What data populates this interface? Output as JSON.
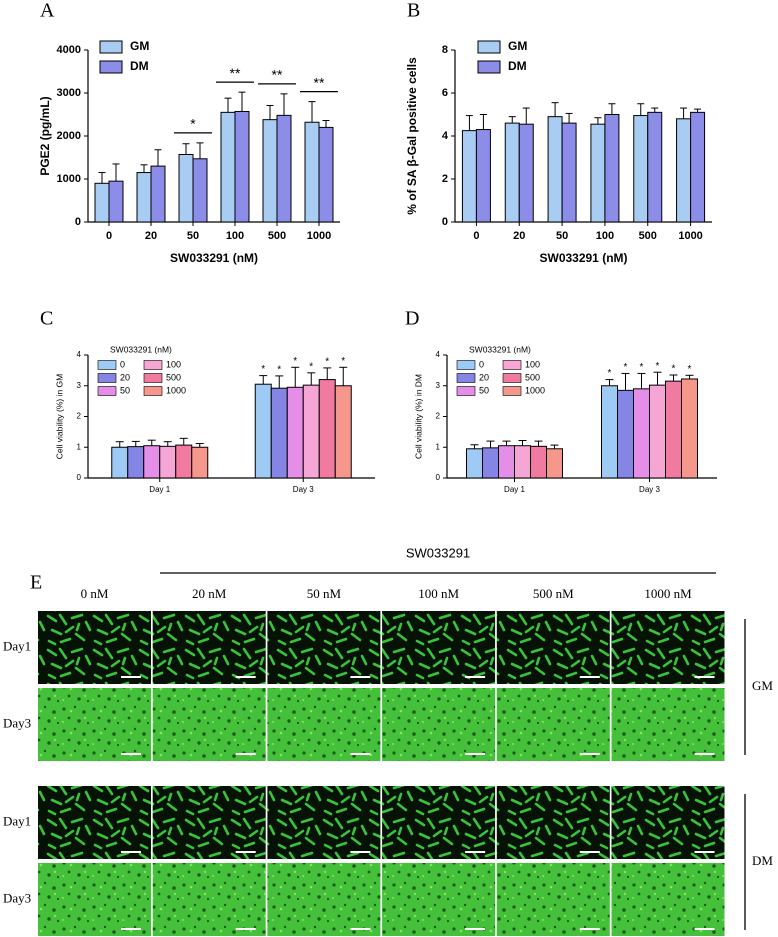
{
  "chart_data": [
    {
      "type": "bar",
      "panel_label": "A",
      "xlabel": "SW033291 (nM)",
      "ylabel": "PGE2 (pg/mL)",
      "categories": [
        "0",
        "20",
        "50",
        "100",
        "500",
        "1000"
      ],
      "series": [
        {
          "name": "GM",
          "color": "#a9cdf2",
          "values": [
            900,
            1150,
            1570,
            2550,
            2380,
            2320
          ],
          "errors": [
            250,
            180,
            250,
            330,
            330,
            480
          ]
        },
        {
          "name": "DM",
          "color": "#8c8de8",
          "values": [
            950,
            1300,
            1470,
            2570,
            2480,
            2200
          ],
          "errors": [
            400,
            380,
            370,
            450,
            500,
            160
          ]
        }
      ],
      "ylim": [
        0,
        4000
      ],
      "yticks": [
        0,
        1000,
        2000,
        3000,
        4000
      ],
      "annotations": [
        {
          "category": "50",
          "text": "*"
        },
        {
          "category": "100",
          "text": "**"
        },
        {
          "category": "500",
          "text": "**"
        },
        {
          "category": "1000",
          "text": "**"
        }
      ]
    },
    {
      "type": "bar",
      "panel_label": "B",
      "xlabel": "SW033291 (nM)",
      "ylabel": "% of SA β-Gal positive cells",
      "categories": [
        "0",
        "20",
        "50",
        "100",
        "500",
        "1000"
      ],
      "series": [
        {
          "name": "GM",
          "color": "#a9cdf2",
          "values": [
            4.25,
            4.6,
            4.9,
            4.55,
            4.95,
            4.8
          ],
          "errors": [
            0.7,
            0.3,
            0.65,
            0.3,
            0.55,
            0.5
          ]
        },
        {
          "name": "DM",
          "color": "#8c8de8",
          "values": [
            4.3,
            4.55,
            4.6,
            5.0,
            5.1,
            5.1
          ],
          "errors": [
            0.7,
            0.75,
            0.45,
            0.5,
            0.2,
            0.15
          ]
        }
      ],
      "ylim": [
        0,
        8
      ],
      "yticks": [
        0,
        2,
        4,
        6,
        8
      ]
    },
    {
      "type": "bar",
      "panel_label": "C",
      "ylabel": "Cell viability (%) in GM",
      "legend_title": "SW033291 (nM)",
      "categories": [
        "Day 1",
        "Day 3"
      ],
      "series": [
        {
          "name": "0",
          "color": "#9ecbf5",
          "values": [
            1.0,
            3.05
          ],
          "errors": [
            0.18,
            0.28
          ]
        },
        {
          "name": "20",
          "color": "#8585e6",
          "values": [
            1.02,
            2.92
          ],
          "errors": [
            0.17,
            0.4
          ]
        },
        {
          "name": "50",
          "color": "#e48ee8",
          "values": [
            1.05,
            2.95
          ],
          "errors": [
            0.18,
            0.65
          ]
        },
        {
          "name": "100",
          "color": "#f5a6d5",
          "values": [
            1.03,
            3.02
          ],
          "errors": [
            0.15,
            0.4
          ]
        },
        {
          "name": "500",
          "color": "#f07aa0",
          "values": [
            1.07,
            3.2
          ],
          "errors": [
            0.22,
            0.38
          ]
        },
        {
          "name": "1000",
          "color": "#f5978a",
          "values": [
            1.0,
            3.0
          ],
          "errors": [
            0.12,
            0.6
          ]
        }
      ],
      "ylim": [
        0,
        4
      ],
      "yticks": [
        0,
        1,
        2,
        3,
        4
      ],
      "annotations": [
        {
          "category": "Day 3",
          "series": "0",
          "text": "*"
        },
        {
          "category": "Day 3",
          "series": "20",
          "text": "*"
        },
        {
          "category": "Day 3",
          "series": "50",
          "text": "*"
        },
        {
          "category": "Day 3",
          "series": "100",
          "text": "*"
        },
        {
          "category": "Day 3",
          "series": "500",
          "text": "*"
        },
        {
          "category": "Day 3",
          "series": "1000",
          "text": "*"
        }
      ]
    },
    {
      "type": "bar",
      "panel_label": "D",
      "ylabel": "Cell viability (%) in DM",
      "legend_title": "SW033291 (nM)",
      "categories": [
        "Day 1",
        "Day 3"
      ],
      "series": [
        {
          "name": "0",
          "color": "#9ecbf5",
          "values": [
            0.95,
            3.0
          ],
          "errors": [
            0.13,
            0.2
          ]
        },
        {
          "name": "20",
          "color": "#8585e6",
          "values": [
            0.98,
            2.85
          ],
          "errors": [
            0.22,
            0.55
          ]
        },
        {
          "name": "50",
          "color": "#e48ee8",
          "values": [
            1.05,
            2.9
          ],
          "errors": [
            0.15,
            0.5
          ]
        },
        {
          "name": "100",
          "color": "#f5a6d5",
          "values": [
            1.05,
            3.02
          ],
          "errors": [
            0.17,
            0.42
          ]
        },
        {
          "name": "500",
          "color": "#f07aa0",
          "values": [
            1.03,
            3.15
          ],
          "errors": [
            0.17,
            0.2
          ]
        },
        {
          "name": "1000",
          "color": "#f5978a",
          "values": [
            0.95,
            3.22
          ],
          "errors": [
            0.12,
            0.12
          ]
        }
      ],
      "ylim": [
        0,
        4
      ],
      "yticks": [
        0,
        1,
        2,
        3,
        4
      ],
      "annotations": [
        {
          "category": "Day 3",
          "series": "0",
          "text": "*"
        },
        {
          "category": "Day 3",
          "series": "20",
          "text": "*"
        },
        {
          "category": "Day 3",
          "series": "50",
          "text": "*"
        },
        {
          "category": "Day 3",
          "series": "100",
          "text": "*"
        },
        {
          "category": "Day 3",
          "series": "500",
          "text": "*"
        },
        {
          "category": "Day 3",
          "series": "1000",
          "text": "*"
        }
      ]
    }
  ],
  "panel_e": {
    "panel_label": "E",
    "treatment": "SW033291",
    "columns": [
      "0 nM",
      "20 nM",
      "50 nM",
      "100 nM",
      "500 nM",
      "1000 nM"
    ],
    "groups": [
      {
        "name": "GM",
        "rows": [
          "Day1",
          "Day3"
        ]
      },
      {
        "name": "DM",
        "rows": [
          "Day1",
          "Day3"
        ]
      }
    ]
  }
}
